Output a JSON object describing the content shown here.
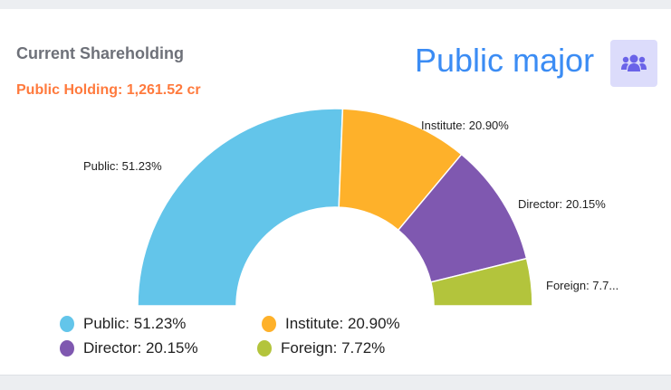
{
  "header": {
    "title": "Current Shareholding",
    "subtitle": "Public Holding: 1,261.52 cr",
    "category": "Public major",
    "icon": "users-icon"
  },
  "chart_data": {
    "type": "pie",
    "variant": "semi-donut",
    "categories": [
      "Public",
      "Institute",
      "Director",
      "Foreign"
    ],
    "values": [
      51.23,
      20.9,
      20.15,
      7.72
    ],
    "colors": [
      "#63c5ea",
      "#feb12a",
      "#7f58b0",
      "#b3c43c"
    ],
    "data_labels": [
      "Public: 51.23%",
      "Institute: 20.90%",
      "Director: 20.15%",
      "Foreign: 7.7..."
    ],
    "legend": [
      "Public: 51.23%",
      "Institute: 20.90%",
      "Director: 20.15%",
      "Foreign: 7.72%"
    ],
    "legend_position": "bottom"
  }
}
